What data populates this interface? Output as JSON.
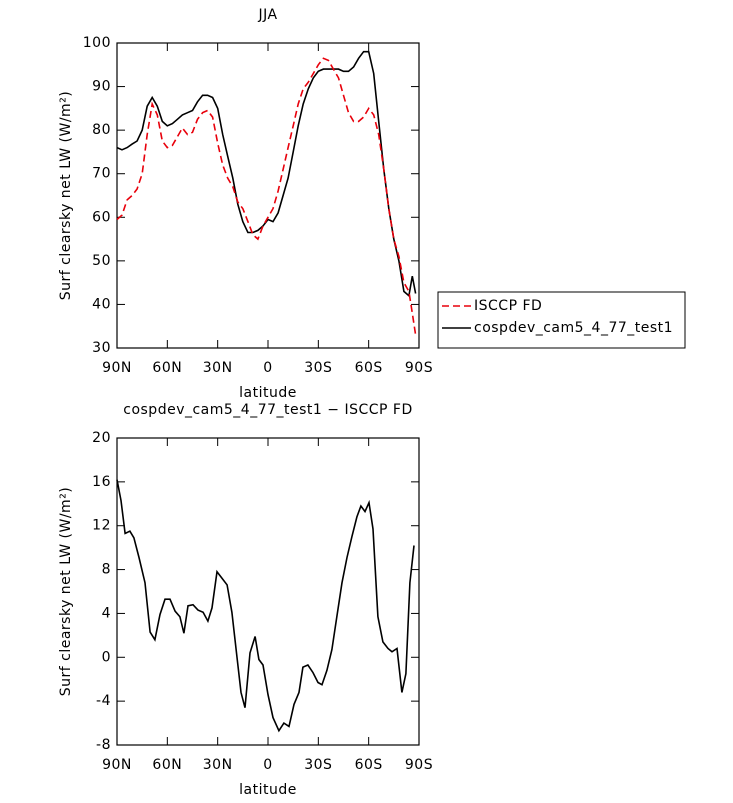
{
  "chart_data": [
    {
      "type": "line",
      "title": "JJA",
      "ylabel": "Surf clearsky net LW (W/m²)",
      "xlabel": "latitude",
      "x": [
        90,
        87,
        84,
        81,
        78,
        75,
        72,
        69,
        66,
        63,
        60,
        57,
        54,
        51,
        48,
        45,
        42,
        39,
        36,
        33,
        30,
        27,
        24,
        21,
        18,
        15,
        12,
        9,
        6,
        3,
        0,
        -3,
        -6,
        -9,
        -12,
        -15,
        -18,
        -21,
        -24,
        -27,
        -30,
        -33,
        -36,
        -39,
        -42,
        -45,
        -48,
        -51,
        -54,
        -57,
        -60,
        -63,
        -66,
        -69,
        -72,
        -75,
        -78,
        -81,
        -84,
        -86,
        -88
      ],
      "series": [
        {
          "name": "ISCCP FD",
          "color": "#e8000b",
          "dash": "dashed",
          "values": [
            59.5,
            60.5,
            64,
            65,
            66.5,
            70,
            79,
            86,
            83.5,
            77.5,
            76,
            76.5,
            78.5,
            80.5,
            79,
            79.5,
            82.5,
            84,
            84.5,
            83,
            77,
            72,
            69,
            67,
            63.5,
            62,
            59,
            56,
            55,
            58,
            60,
            62,
            66,
            71,
            76,
            81,
            86,
            89.5,
            91,
            93,
            95,
            96.5,
            96,
            94,
            92,
            88,
            84,
            82,
            82,
            83,
            85,
            83.5,
            79,
            71,
            62,
            55,
            51,
            45,
            43,
            38,
            33
          ]
        },
        {
          "name": "cospdev_cam5_4_77_test1",
          "color": "#000000",
          "dash": "solid",
          "values": [
            76,
            75.5,
            76,
            76.8,
            77.5,
            80,
            85.5,
            87.5,
            85.5,
            82,
            81,
            81.5,
            82.5,
            83.5,
            84,
            84.5,
            86.5,
            88,
            88,
            87.5,
            85,
            79,
            74,
            69,
            63,
            59,
            56.5,
            56.5,
            57,
            58,
            59.5,
            59,
            61,
            65,
            69,
            75,
            81,
            86,
            89.5,
            92,
            93.5,
            94,
            94,
            94,
            94,
            93.5,
            93.5,
            94.5,
            96.5,
            98,
            98,
            93,
            82,
            71,
            62,
            55,
            50,
            43,
            42,
            46.5,
            42.5
          ]
        }
      ],
      "xlim": [
        90,
        -90
      ],
      "ylim": [
        30,
        100
      ],
      "xticks": [
        {
          "value": 90,
          "label": "90N"
        },
        {
          "value": 60,
          "label": "60N"
        },
        {
          "value": 30,
          "label": "30N"
        },
        0,
        {
          "value": -30,
          "label": "30S"
        },
        {
          "value": -60,
          "label": "60S"
        },
        {
          "value": -90,
          "label": "90S"
        }
      ],
      "yticks": [
        30,
        40,
        50,
        60,
        70,
        80,
        90,
        100
      ],
      "legend": "outside-right"
    },
    {
      "type": "line",
      "title": "cospdev_cam5_4_77_test1 − ISCCP FD",
      "ylabel": "Surf clearsky net LW (W/m²)",
      "xlabel": "latitude",
      "x": [
        90,
        87.6,
        85.2,
        82.3,
        79.9,
        76.9,
        73.3,
        70.3,
        67.4,
        64.4,
        61.4,
        58.4,
        55.4,
        52.5,
        50.1,
        47.7,
        44.7,
        41.7,
        38.7,
        35.8,
        33.4,
        30.4,
        27.4,
        24.4,
        21.5,
        18.5,
        16.1,
        13.7,
        10.7,
        7.7,
        5.4,
        3,
        0,
        -3,
        -6.5,
        -9.5,
        -12.5,
        -15.5,
        -18.5,
        -20.8,
        -23.8,
        -26.8,
        -29.8,
        -32.2,
        -35.1,
        -38.1,
        -41.1,
        -44.1,
        -47.1,
        -50,
        -53,
        -55.4,
        -57.8,
        -60.2,
        -62.6,
        -65.5,
        -68.5,
        -71.5,
        -73.9,
        -76.9,
        -79.8,
        -82.2,
        -84.6,
        -87
      ],
      "values": [
        16.2,
        14.3,
        11.3,
        11.5,
        10.9,
        9.1,
        6.8,
        2.3,
        1.6,
        3.9,
        5.3,
        5.3,
        4.2,
        3.7,
        2.2,
        4.7,
        4.8,
        4.3,
        4.1,
        3.3,
        4.5,
        7.8,
        7.2,
        6.6,
        4.1,
        0,
        -3.2,
        -4.6,
        0.4,
        1.9,
        -0.2,
        -0.7,
        -3.4,
        -5.5,
        -6.7,
        -6,
        -6.3,
        -4.3,
        -3.2,
        -0.9,
        -0.7,
        -1.4,
        -2.3,
        -2.5,
        -1.2,
        0.7,
        3.8,
        6.8,
        9.1,
        11,
        12.8,
        13.8,
        13.3,
        14.1,
        11.7,
        3.7,
        1.4,
        0.8,
        0.5,
        0.8,
        -3.2,
        -1.5,
        6.8,
        10.2
      ],
      "color": "#000000",
      "xlim": [
        90,
        -90
      ],
      "ylim": [
        -8,
        20
      ],
      "xticks": [
        {
          "value": 90,
          "label": "90N"
        },
        {
          "value": 60,
          "label": "60N"
        },
        {
          "value": 30,
          "label": "30N"
        },
        0,
        {
          "value": -30,
          "label": "30S"
        },
        {
          "value": -60,
          "label": "60S"
        },
        {
          "value": -90,
          "label": "90S"
        }
      ],
      "yticks": [
        -8,
        -4,
        0,
        4,
        8,
        12,
        16,
        20
      ]
    }
  ]
}
